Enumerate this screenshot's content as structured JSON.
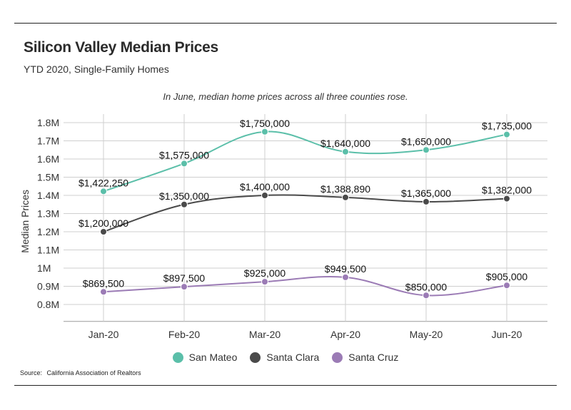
{
  "title": "Silicon Valley Median Prices",
  "subtitle": "YTD 2020, Single-Family Homes",
  "annotation": "In June, median home prices across all three counties rose.",
  "source_label": "Source:",
  "source_text": "California Association of Realtors",
  "chart_data": {
    "type": "line",
    "categories": [
      "Jan-20",
      "Feb-20",
      "Mar-20",
      "Apr-20",
      "May-20",
      "Jun-20"
    ],
    "ylabel": "Median Prices",
    "xlabel": "",
    "ylim": [
      750000,
      1800000
    ],
    "yticks": [
      800000,
      900000,
      1000000,
      1100000,
      1200000,
      1300000,
      1400000,
      1500000,
      1600000,
      1700000,
      1800000
    ],
    "ytick_labels": [
      "0.8M",
      "0.9M",
      "1M",
      "1.1M",
      "1.2M",
      "1.3M",
      "1.4M",
      "1.5M",
      "1.6M",
      "1.7M",
      "1.8M"
    ],
    "grid": true,
    "legend_position": "bottom",
    "series": [
      {
        "name": "San Mateo",
        "color": "#5bbfa9",
        "values": [
          1422250,
          1575000,
          1750000,
          1640000,
          1650000,
          1735000
        ],
        "labels": [
          "$1,422,250",
          "$1,575,000",
          "$1,750,000",
          "$1,640,000",
          "$1,650,000",
          "$1,735,000"
        ]
      },
      {
        "name": "Santa Clara",
        "color": "#4a4a4a",
        "values": [
          1200000,
          1350000,
          1400000,
          1388890,
          1365000,
          1382000
        ],
        "labels": [
          "$1,200,000",
          "$1,350,000",
          "$1,400,000",
          "$1,388,890",
          "$1,365,000",
          "$1,382,000"
        ]
      },
      {
        "name": "Santa Cruz",
        "color": "#9b7bb5",
        "values": [
          869500,
          897500,
          925000,
          949500,
          850000,
          905000
        ],
        "labels": [
          "$869,500",
          "$897,500",
          "$925,000",
          "$949,500",
          "$850,000",
          "$905,000"
        ]
      }
    ]
  }
}
